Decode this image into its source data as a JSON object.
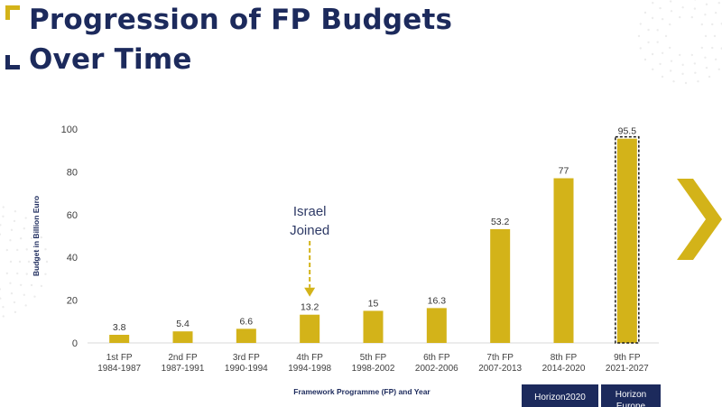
{
  "slide": {
    "title_line1": "Progression of FP Budgets",
    "title_line2": "Over Time",
    "accent_color": "#d3b319",
    "title_color": "#1c2a5c"
  },
  "annotation": {
    "line1": "Israel",
    "line2": "Joined",
    "target_category_index": 3,
    "arrow_style": "dashed-down-arrow"
  },
  "programme_tabs": [
    {
      "label": "Horizon2020",
      "category_index": 7
    },
    {
      "label": "Horizon Europe",
      "category_index": 8
    }
  ],
  "decorations": {
    "next_chevron_icon": "chevron-right-icon",
    "highlight": "dashed-box-around-9th-FP"
  },
  "chart_data": {
    "type": "bar",
    "title": "",
    "xlabel": "Framework Programme (FP) and Year",
    "ylabel": "Budget in Billion Euro",
    "ylim": [
      0,
      100
    ],
    "yticks": [
      0,
      20,
      40,
      60,
      80,
      100
    ],
    "grid": false,
    "categories": [
      {
        "name": "1st FP",
        "years": "1984-1987"
      },
      {
        "name": "2nd FP",
        "years": "1987-1991"
      },
      {
        "name": "3rd FP",
        "years": "1990-1994"
      },
      {
        "name": "4th FP",
        "years": "1994-1998"
      },
      {
        "name": "5th FP",
        "years": "1998-2002"
      },
      {
        "name": "6th FP",
        "years": "2002-2006"
      },
      {
        "name": "7th FP",
        "years": "2007-2013"
      },
      {
        "name": "8th FP",
        "years": "2014-2020"
      },
      {
        "name": "9th FP",
        "years": "2021-2027"
      }
    ],
    "values": [
      3.8,
      5.4,
      6.6,
      13.2,
      15,
      16.3,
      53.2,
      77,
      95.5
    ],
    "data_labels": [
      "3.8",
      "5.4",
      "6.6",
      "13.2",
      "15",
      "16.3",
      "53.2",
      "77",
      "95.5"
    ],
    "highlighted_index": 8,
    "bar_color": "#d3b319"
  }
}
